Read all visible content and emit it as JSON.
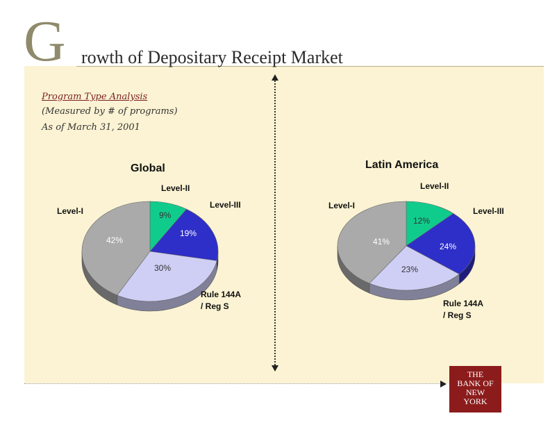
{
  "header": {
    "initial": "G",
    "title_rest": "rowth of Depositary Receipt Market"
  },
  "subtitle": {
    "line1": "Program Type Analysis",
    "line2": "(Measured by # of programs)",
    "line3": "As of March 31, 2001"
  },
  "logo": {
    "lines": [
      "THE",
      "BANK OF",
      "NEW",
      "YORK"
    ]
  },
  "colors": {
    "panel": "#fbf3d3",
    "level_ii": "#10cc8c",
    "level_iii": "#2e2ec8",
    "rule_144a": "#cfcff5",
    "level_i": "#aaaaaa"
  },
  "chart_data": [
    {
      "type": "pie",
      "title": "Global",
      "slices": [
        {
          "label": "Level-II",
          "value": 9,
          "value_label": "9%",
          "color": "#10cc8c"
        },
        {
          "label": "Level-III",
          "value": 19,
          "value_label": "19%",
          "color": "#2e2ec8"
        },
        {
          "label": "Rule 144A / Reg S",
          "value": 30,
          "value_label": "30%",
          "color": "#cfcff5"
        },
        {
          "label": "Level-I",
          "value": 42,
          "value_label": "42%",
          "color": "#aaaaaa"
        }
      ]
    },
    {
      "type": "pie",
      "title": "Latin America",
      "slices": [
        {
          "label": "Level-II",
          "value": 12,
          "value_label": "12%",
          "color": "#10cc8c"
        },
        {
          "label": "Level-III",
          "value": 24,
          "value_label": "24%",
          "color": "#2e2ec8"
        },
        {
          "label": "Rule 144A / Reg S",
          "value": 23,
          "value_label": "23%",
          "color": "#cfcff5"
        },
        {
          "label": "Level-I",
          "value": 41,
          "value_label": "41%",
          "color": "#aaaaaa"
        }
      ]
    }
  ]
}
